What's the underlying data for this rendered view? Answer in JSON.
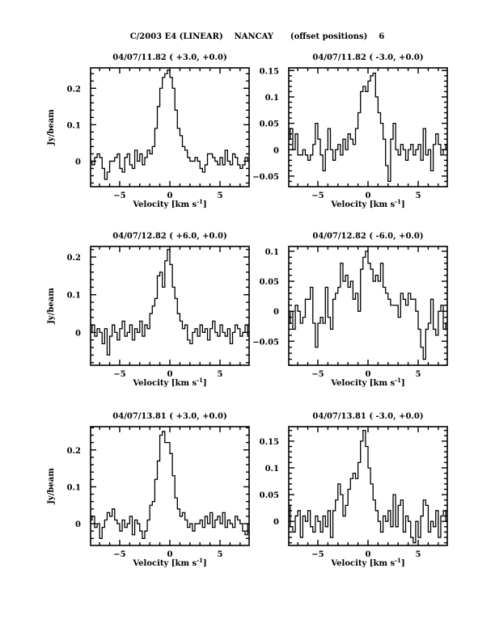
{
  "page_title": "C/2003 E4 (LINEAR)    NANCAY      (offset positions)    6",
  "chart_data": [
    {
      "type": "line",
      "style": "histogram",
      "title": "04/07/11.82  ( +3.0, +0.0)",
      "xlabel": "Velocity [km s",
      "xlabel_sup": "-1",
      "xlabel_end": "]",
      "ylabel": "Jy/beam",
      "xlim": [
        -7.9,
        7.9
      ],
      "ylim": [
        -0.07,
        0.256
      ],
      "xticks": [
        -5,
        0,
        5
      ],
      "yticks": [
        0,
        0.1,
        0.2
      ],
      "ytick_labels": [
        "0",
        "0.1",
        "0.2"
      ],
      "x_start": -7.875,
      "channel_width": 0.25,
      "values": [
        0.0,
        -0.01,
        0.01,
        0.02,
        0.01,
        -0.02,
        -0.05,
        -0.03,
        0.0,
        0.0,
        0.01,
        0.02,
        -0.02,
        -0.03,
        0.01,
        0.02,
        -0.01,
        -0.02,
        0.03,
        0.0,
        0.02,
        -0.01,
        0.01,
        0.03,
        0.02,
        0.04,
        0.09,
        0.15,
        0.2,
        0.23,
        0.24,
        0.25,
        0.23,
        0.2,
        0.14,
        0.09,
        0.07,
        0.04,
        0.03,
        0.01,
        0.0,
        0.0,
        0.01,
        0.0,
        -0.02,
        -0.03,
        -0.01,
        0.02,
        0.02,
        0.01,
        0.0,
        -0.01,
        0.01,
        -0.01,
        0.03,
        0.0,
        -0.01,
        0.02,
        0.01,
        -0.01,
        -0.02,
        -0.01,
        0.01,
        0.0
      ]
    },
    {
      "type": "line",
      "style": "histogram",
      "title": "04/07/11.82  ( -3.0, +0.0)",
      "xlabel": "Velocity [km s",
      "xlabel_sup": "-1",
      "xlabel_end": "]",
      "ylabel": "",
      "xlim": [
        -7.9,
        7.9
      ],
      "ylim": [
        -0.07,
        0.155
      ],
      "xticks": [
        -5,
        0,
        5
      ],
      "yticks": [
        -0.05,
        0,
        0.05,
        0.1,
        0.15
      ],
      "ytick_labels": [
        "-0.05",
        "0",
        "0.05",
        "0.1",
        "0.15"
      ],
      "x_start": -7.875,
      "channel_width": 0.25,
      "values": [
        0.02,
        0.04,
        0.0,
        0.03,
        -0.01,
        -0.01,
        0.0,
        -0.01,
        -0.02,
        -0.01,
        0.01,
        0.05,
        0.02,
        -0.01,
        -0.04,
        0.0,
        0.04,
        0.0,
        -0.02,
        0.0,
        0.01,
        -0.01,
        0.02,
        0.0,
        0.03,
        0.02,
        0.01,
        0.04,
        0.07,
        0.11,
        0.12,
        0.11,
        0.13,
        0.14,
        0.145,
        0.1,
        0.07,
        0.05,
        0.02,
        -0.03,
        -0.06,
        0.02,
        0.05,
        0.0,
        -0.01,
        0.01,
        0.0,
        -0.02,
        0.0,
        0.01,
        -0.01,
        0.0,
        0.01,
        -0.02,
        0.04,
        -0.01,
        0.0,
        -0.04,
        0.01,
        0.03,
        0.01,
        -0.01,
        0.0,
        0.01
      ]
    },
    {
      "type": "line",
      "style": "histogram",
      "title": "04/07/12.82  ( +6.0, +0.0)",
      "xlabel": "Velocity [km s",
      "xlabel_sup": "-1",
      "xlabel_end": "]",
      "ylabel": "Jy/beam",
      "xlim": [
        -7.9,
        7.9
      ],
      "ylim": [
        -0.087,
        0.228
      ],
      "xticks": [
        -5,
        0,
        5
      ],
      "yticks": [
        0,
        0.1,
        0.2
      ],
      "ytick_labels": [
        "0",
        "0.1",
        "0.2"
      ],
      "x_start": -7.875,
      "channel_width": 0.25,
      "values": [
        0.0,
        0.02,
        -0.01,
        0.01,
        0.0,
        -0.03,
        0.01,
        -0.06,
        -0.01,
        0.02,
        0.0,
        -0.02,
        0.01,
        0.03,
        -0.01,
        0.0,
        0.02,
        -0.02,
        0.01,
        0.0,
        0.03,
        -0.01,
        0.02,
        0.01,
        0.05,
        0.07,
        0.09,
        0.15,
        0.16,
        0.12,
        0.19,
        0.22,
        0.18,
        0.12,
        0.09,
        0.05,
        0.03,
        0.01,
        0.02,
        -0.02,
        -0.03,
        0.0,
        0.01,
        -0.01,
        0.02,
        0.0,
        0.01,
        -0.02,
        0.01,
        0.03,
        0.0,
        -0.01,
        0.02,
        0.0,
        -0.01,
        0.01,
        -0.03,
        0.0,
        0.02,
        0.01,
        -0.01,
        0.0,
        0.02,
        -0.01
      ]
    },
    {
      "type": "line",
      "style": "histogram",
      "title": "04/07/12.82  ( -6.0, +0.0)",
      "xlabel": "Velocity [km s",
      "xlabel_sup": "-1",
      "xlabel_end": "]",
      "ylabel": "",
      "xlim": [
        -7.9,
        7.9
      ],
      "ylim": [
        -0.09,
        0.108
      ],
      "xticks": [
        -5,
        0,
        5
      ],
      "yticks": [
        -0.05,
        0,
        0.05,
        0.1
      ],
      "ytick_labels": [
        "-0.05",
        "0",
        "0.05",
        "0.1"
      ],
      "x_start": -7.875,
      "channel_width": 0.25,
      "values": [
        -0.02,
        0.0,
        -0.03,
        0.01,
        0.0,
        -0.02,
        -0.01,
        0.02,
        0.02,
        0.04,
        -0.02,
        -0.06,
        -0.02,
        -0.01,
        -0.02,
        0.04,
        -0.01,
        -0.03,
        0.02,
        0.03,
        0.04,
        0.08,
        0.05,
        0.06,
        0.04,
        0.05,
        0.02,
        0.03,
        0.0,
        0.07,
        0.09,
        0.1,
        0.08,
        0.07,
        0.05,
        0.06,
        0.05,
        0.08,
        0.04,
        0.03,
        0.02,
        0.01,
        0.01,
        0.01,
        -0.01,
        0.03,
        0.02,
        0.01,
        0.03,
        0.02,
        0.02,
        0.0,
        -0.03,
        -0.06,
        -0.08,
        -0.03,
        -0.02,
        0.02,
        -0.03,
        -0.04,
        0.0,
        0.01,
        -0.03,
        -0.02
      ]
    },
    {
      "type": "line",
      "style": "histogram",
      "title": "04/07/13.81  ( +3.0, +0.0)",
      "xlabel": "Velocity [km s",
      "xlabel_sup": "-1",
      "xlabel_end": "]",
      "ylabel": "Jy/beam",
      "xlim": [
        -7.9,
        7.9
      ],
      "ylim": [
        -0.059,
        0.263
      ],
      "xticks": [
        -5,
        0,
        5
      ],
      "yticks": [
        0,
        0.1,
        0.2
      ],
      "ytick_labels": [
        "0",
        "0.1",
        "0.2"
      ],
      "x_start": -7.875,
      "channel_width": 0.25,
      "values": [
        0.01,
        0.02,
        -0.01,
        0.0,
        -0.04,
        -0.01,
        0.01,
        0.03,
        0.02,
        0.04,
        0.01,
        0.0,
        -0.02,
        0.01,
        -0.01,
        0.0,
        0.02,
        -0.03,
        0.01,
        0.0,
        -0.02,
        -0.04,
        -0.02,
        0.01,
        0.05,
        0.06,
        0.12,
        0.17,
        0.24,
        0.25,
        0.22,
        0.22,
        0.19,
        0.13,
        0.07,
        0.04,
        0.02,
        0.03,
        0.01,
        -0.01,
        0.0,
        -0.02,
        0.0,
        0.0,
        0.01,
        -0.01,
        0.02,
        0.0,
        0.03,
        -0.01,
        0.01,
        0.02,
        0.0,
        0.03,
        -0.01,
        0.01,
        0.0,
        -0.01,
        0.02,
        0.01,
        0.0,
        -0.02,
        -0.03,
        0.0
      ]
    },
    {
      "type": "line",
      "style": "histogram",
      "title": "04/07/13.81  ( -3.0, +0.0)",
      "xlabel": "Velocity [km s",
      "xlabel_sup": "-1",
      "xlabel_end": "]",
      "ylabel": "",
      "xlim": [
        -7.9,
        7.9
      ],
      "ylim": [
        -0.045,
        0.177
      ],
      "xticks": [
        -5,
        0,
        5
      ],
      "yticks": [
        0,
        0.05,
        0.1,
        0.15
      ],
      "ytick_labels": [
        "0",
        "0.05",
        "0.1",
        "0.15"
      ],
      "x_start": -7.875,
      "channel_width": 0.25,
      "values": [
        0.03,
        -0.01,
        -0.02,
        0.01,
        0.02,
        -0.03,
        0.01,
        0.0,
        0.02,
        -0.01,
        -0.02,
        0.01,
        0.0,
        -0.02,
        0.01,
        -0.01,
        0.02,
        -0.03,
        0.02,
        0.04,
        0.07,
        0.05,
        0.01,
        0.03,
        0.06,
        0.08,
        0.09,
        0.08,
        0.11,
        0.15,
        0.17,
        0.14,
        0.1,
        0.07,
        0.04,
        0.02,
        0.0,
        -0.02,
        0.01,
        0.0,
        0.02,
        -0.01,
        0.05,
        -0.01,
        0.03,
        0.04,
        -0.02,
        0.01,
        0.0,
        -0.03,
        -0.04,
        0.0,
        -0.03,
        0.01,
        0.04,
        0.03,
        -0.02,
        0.0,
        -0.01,
        0.02,
        -0.03,
        0.01,
        0.02,
        0.0
      ]
    }
  ]
}
